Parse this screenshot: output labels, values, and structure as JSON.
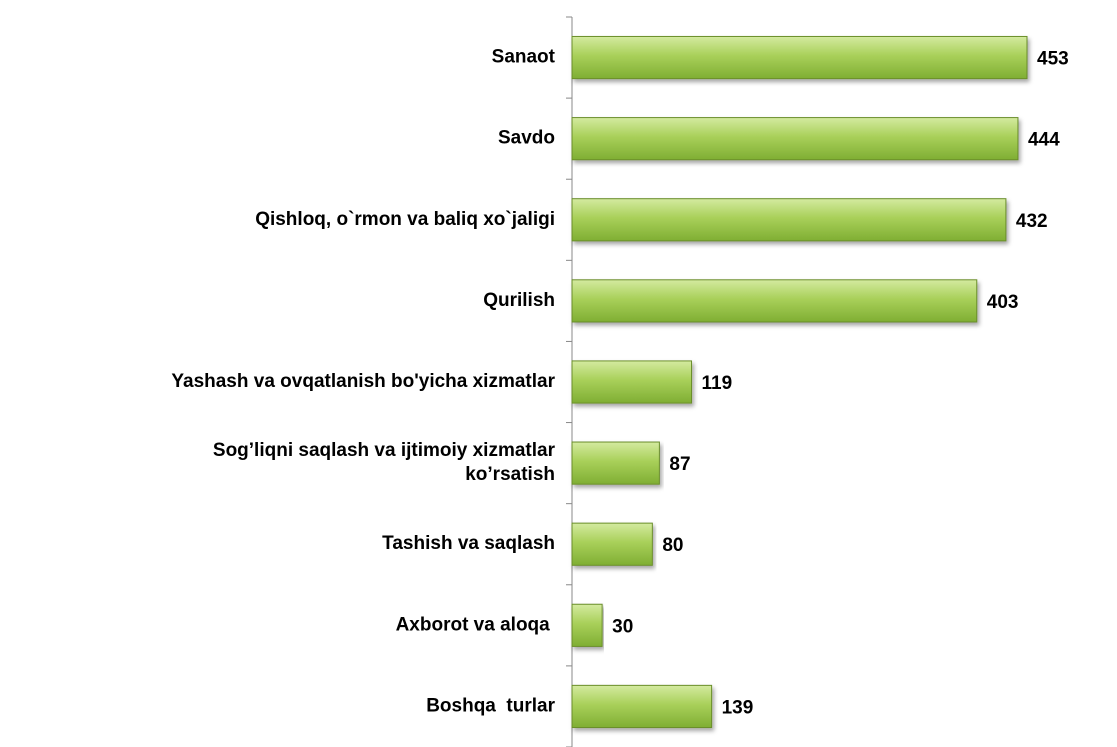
{
  "chart_data": {
    "type": "barh",
    "categories": [
      "Sanaot",
      "Savdo",
      "Qishloq, o`rmon va baliq xo`jaligi",
      "Qurilish",
      "Yashash va ovqatlanish bo'yicha xizmatlar",
      "Sog’liqni saqlash va ijtimoiy xizmatlar\nko’rsatish",
      "Tashish va saqlash",
      "Axborot va aloqa ",
      "Boshqa  turlar"
    ],
    "values": [
      453,
      444,
      432,
      403,
      119,
      87,
      80,
      30,
      139
    ],
    "color": "#9bc54a"
  }
}
